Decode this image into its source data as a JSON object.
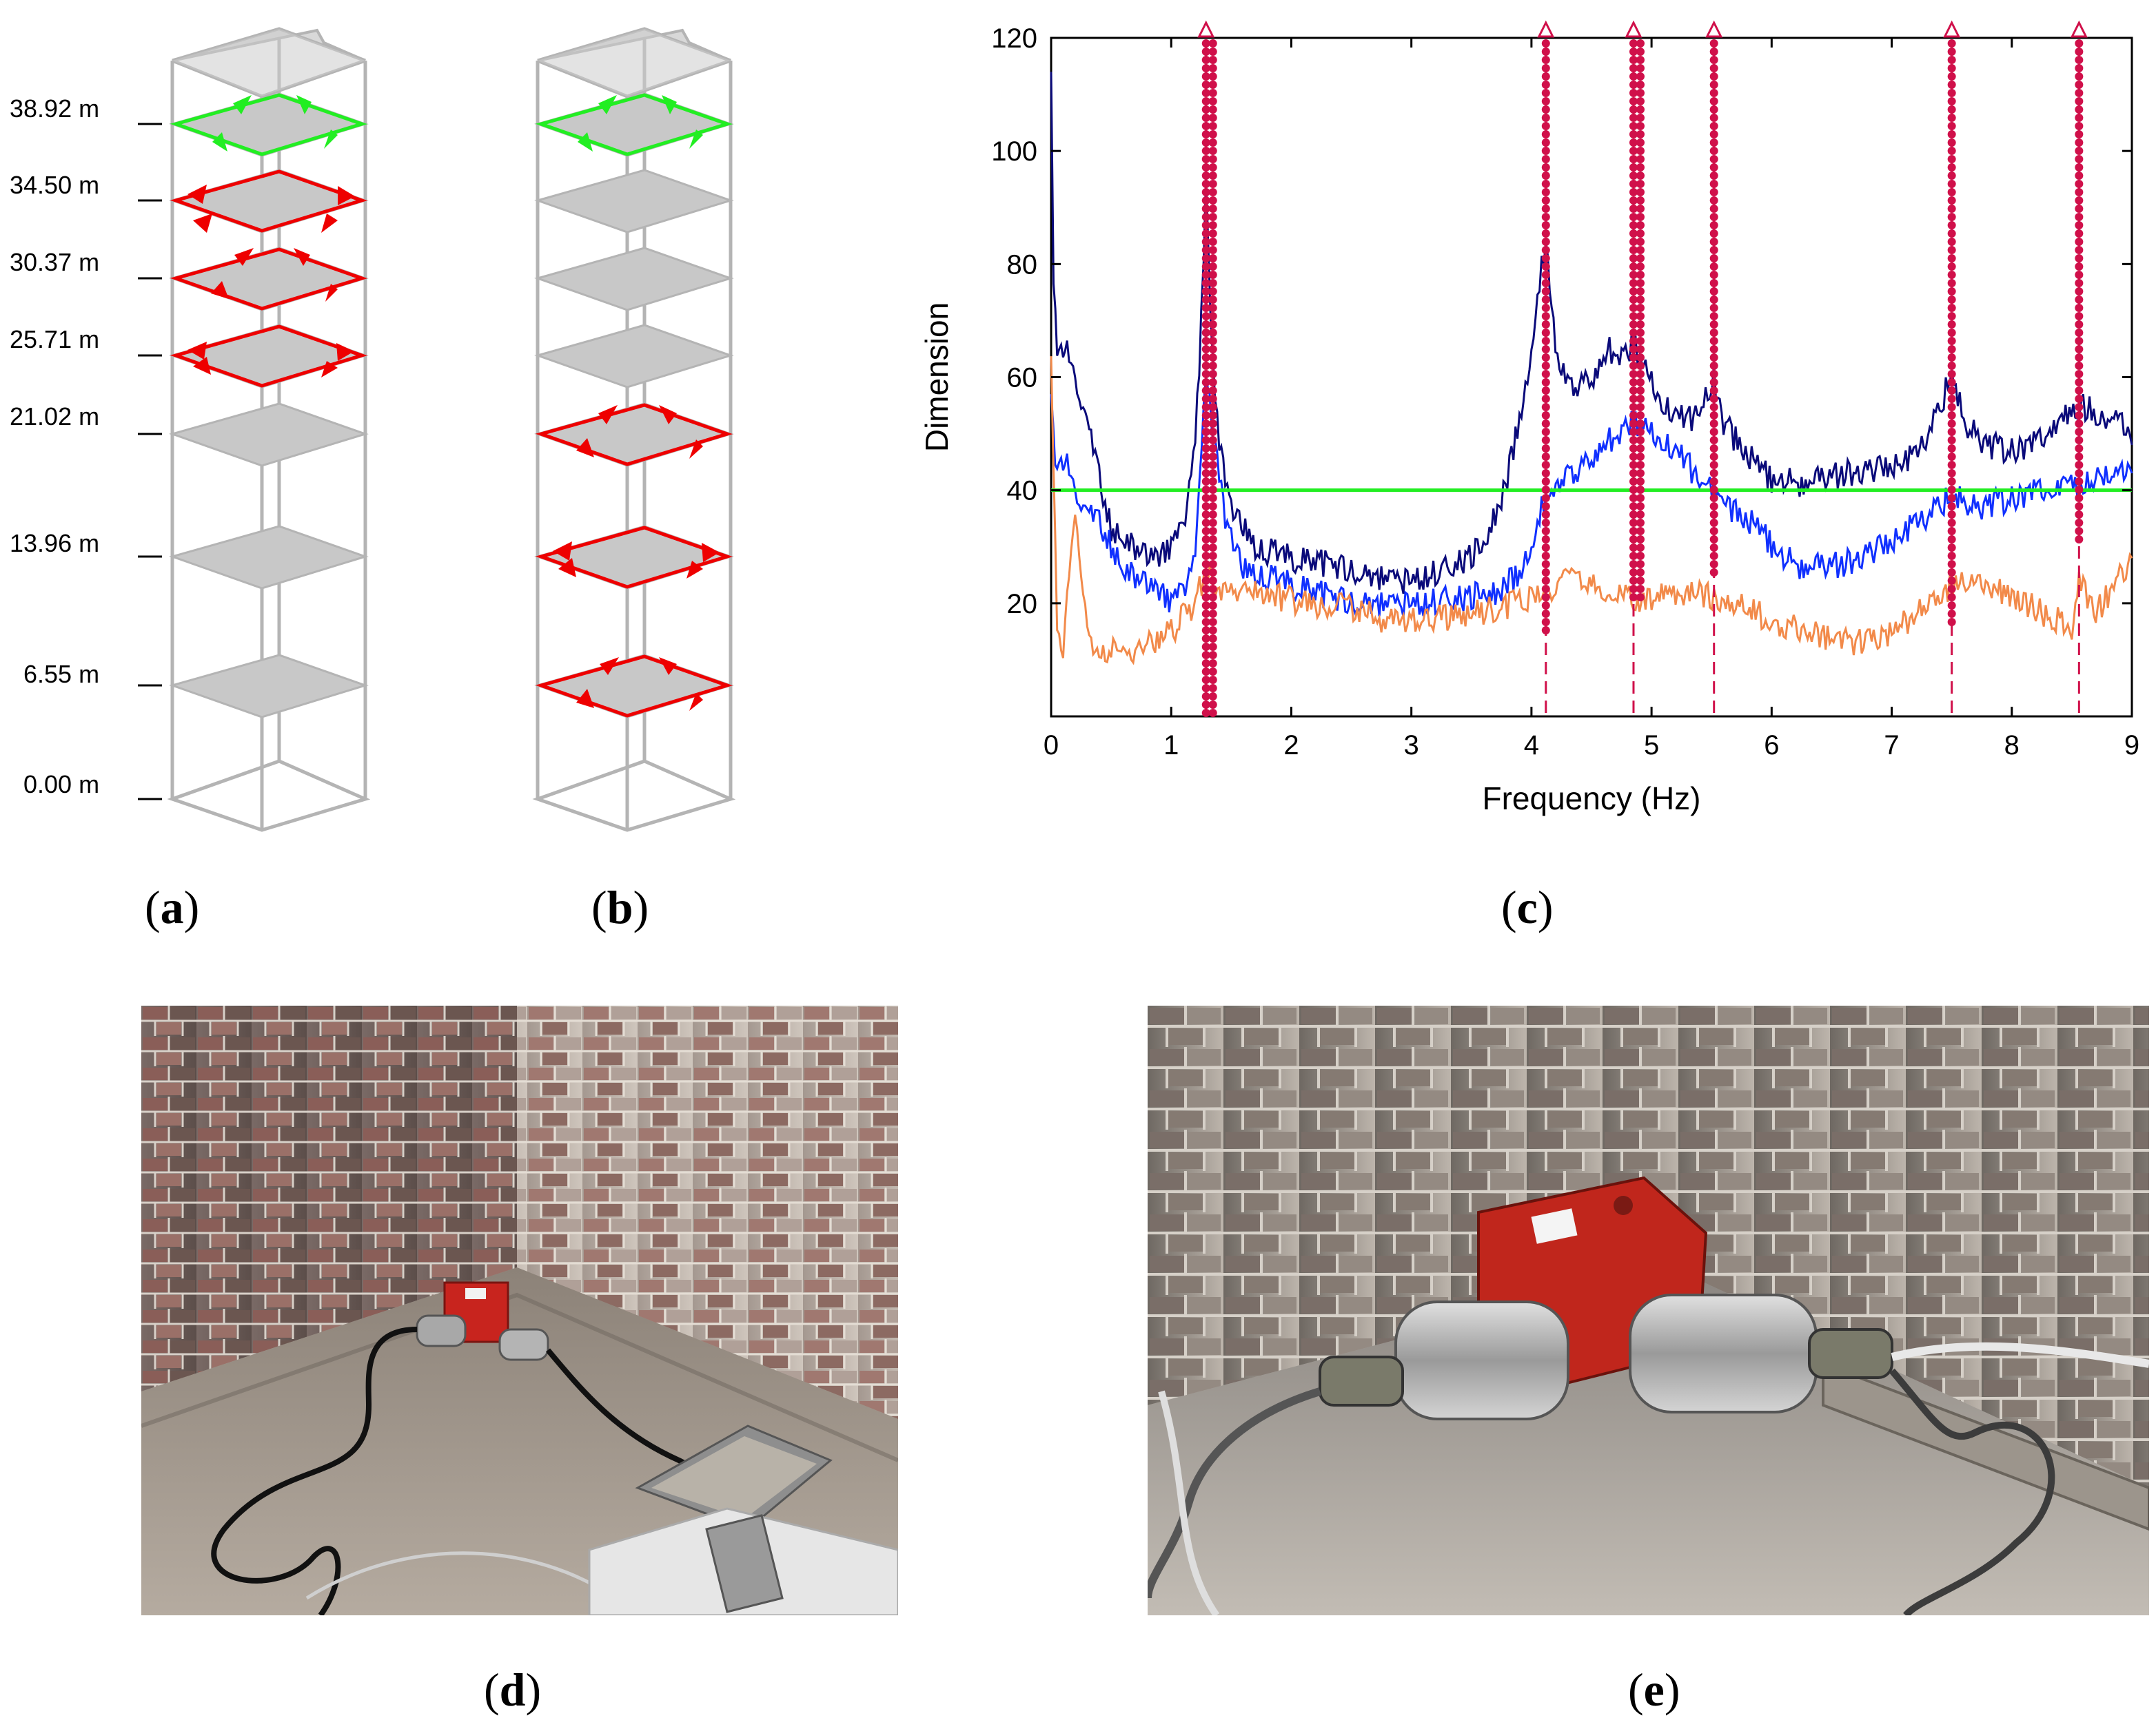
{
  "panels": {
    "a": "a",
    "b": "b",
    "c": "c",
    "d": "d",
    "e": "e"
  },
  "levels": [
    "38.92 m",
    "34.50 m",
    "30.37 m",
    "25.71 m",
    "21.02 m",
    "13.96 m",
    "6.55 m",
    "0.00 m"
  ],
  "colors": {
    "setup1": "#ff0000",
    "setup_ref": "#22ee22",
    "slab": "#c8c8c8",
    "frame": "#b0b0b0",
    "series_dark": "#0a0a7a",
    "series_blue": "#1030ff",
    "series_orange": "#f28a4a",
    "threshold": "#22ee22",
    "peaks": "#d0104a"
  },
  "photos": {
    "d": "sensor-in-corner-wide",
    "e": "sensor-in-corner-close"
  },
  "chart_data": {
    "type": "line",
    "title": "",
    "xlabel": "Frequency (Hz)",
    "ylabel": "Dimension",
    "xlim": [
      0,
      9
    ],
    "ylim": [
      0,
      120
    ],
    "xticks": [
      0,
      1,
      2,
      3,
      4,
      5,
      6,
      7,
      8,
      9
    ],
    "yticks": [
      20,
      40,
      60,
      80,
      100,
      120
    ],
    "threshold": 40,
    "peaks": [
      1.29,
      4.12,
      4.85,
      5.52,
      7.5,
      8.56
    ],
    "series": [
      {
        "name": "dark",
        "x": [
          0.0,
          0.02,
          0.05,
          0.1,
          0.2,
          0.3,
          0.4,
          0.5,
          0.7,
          0.9,
          1.0,
          1.1,
          1.2,
          1.25,
          1.29,
          1.33,
          1.4,
          1.5,
          1.7,
          2.0,
          2.3,
          2.6,
          3.0,
          3.3,
          3.6,
          3.8,
          3.95,
          4.05,
          4.12,
          4.2,
          4.3,
          4.5,
          4.65,
          4.8,
          4.85,
          4.95,
          5.1,
          5.3,
          5.45,
          5.52,
          5.6,
          5.8,
          6.0,
          6.3,
          6.6,
          6.9,
          7.2,
          7.4,
          7.5,
          7.6,
          7.8,
          8.0,
          8.2,
          8.4,
          8.56,
          8.7,
          8.9,
          9.0
        ],
        "y": [
          112,
          78,
          62,
          66,
          60,
          52,
          42,
          33,
          30,
          28,
          30,
          33,
          48,
          70,
          95,
          68,
          48,
          37,
          30,
          28,
          27,
          25,
          24,
          26,
          30,
          42,
          58,
          74,
          85,
          66,
          58,
          60,
          65,
          64,
          66,
          61,
          55,
          52,
          56,
          60,
          52,
          46,
          42,
          41,
          43,
          44,
          46,
          54,
          61,
          52,
          48,
          47,
          48,
          52,
          55,
          54,
          52,
          48
        ]
      },
      {
        "name": "blue",
        "x": [
          0.0,
          0.05,
          0.1,
          0.2,
          0.3,
          0.4,
          0.6,
          0.8,
          1.0,
          1.1,
          1.2,
          1.29,
          1.35,
          1.45,
          1.6,
          1.9,
          2.2,
          2.5,
          2.8,
          3.1,
          3.4,
          3.7,
          3.9,
          4.05,
          4.12,
          4.3,
          4.5,
          4.7,
          4.85,
          5.0,
          5.2,
          5.4,
          5.52,
          5.7,
          5.9,
          6.1,
          6.3,
          6.6,
          6.9,
          7.2,
          7.4,
          7.5,
          7.7,
          7.9,
          8.1,
          8.3,
          8.56,
          8.8,
          9.0
        ],
        "y": [
          55,
          42,
          46,
          40,
          36,
          34,
          26,
          24,
          20,
          22,
          28,
          60,
          50,
          35,
          26,
          24,
          22,
          20,
          20,
          20,
          21,
          22,
          25,
          34,
          40,
          42,
          46,
          50,
          52,
          50,
          47,
          42,
          40,
          36,
          33,
          28,
          26,
          27,
          30,
          34,
          37,
          39,
          37,
          38,
          39,
          40,
          41,
          42,
          43
        ]
      },
      {
        "name": "orange",
        "x": [
          0.0,
          0.05,
          0.1,
          0.2,
          0.3,
          0.4,
          0.6,
          0.8,
          1.0,
          1.2,
          1.29,
          1.4,
          1.6,
          1.9,
          2.2,
          2.5,
          2.8,
          3.1,
          3.4,
          3.7,
          4.0,
          4.12,
          4.3,
          4.6,
          4.85,
          5.1,
          5.4,
          5.52,
          5.8,
          6.1,
          6.4,
          6.7,
          7.0,
          7.2,
          7.4,
          7.5,
          7.7,
          7.9,
          8.1,
          8.3,
          8.5,
          8.56,
          8.7,
          8.9,
          9.0
        ],
        "y": [
          66,
          15,
          12,
          38,
          14,
          12,
          11,
          13,
          15,
          20,
          26,
          22,
          22,
          21,
          20,
          19,
          17,
          17,
          18,
          19,
          21,
          22,
          24,
          23,
          21,
          21,
          22,
          21,
          19,
          16,
          14,
          13,
          15,
          18,
          22,
          23,
          24,
          22,
          20,
          18,
          16,
          25,
          18,
          25,
          28
        ]
      }
    ]
  }
}
